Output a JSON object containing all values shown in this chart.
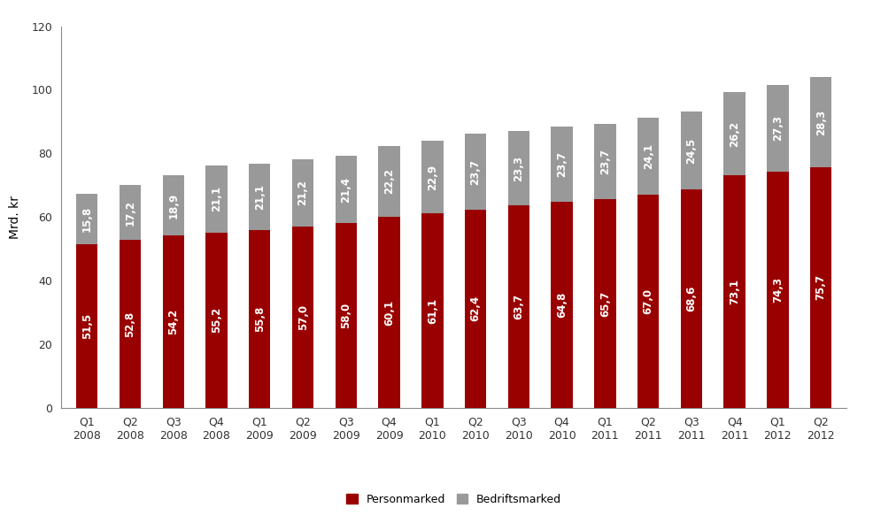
{
  "categories": [
    "Q1\n2008",
    "Q2\n2008",
    "Q3\n2008",
    "Q4\n2008",
    "Q1\n2009",
    "Q2\n2009",
    "Q3\n2009",
    "Q4\n2009",
    "Q1\n2010",
    "Q2\n2010",
    "Q3\n2010",
    "Q4\n2010",
    "Q1\n2011",
    "Q2\n2011",
    "Q3\n2011",
    "Q4\n2011",
    "Q1\n2012",
    "Q2\n2012"
  ],
  "personmarked": [
    51.5,
    52.8,
    54.2,
    55.2,
    55.8,
    57.0,
    58.0,
    60.1,
    61.1,
    62.4,
    63.7,
    64.8,
    65.7,
    67.0,
    68.6,
    73.1,
    74.3,
    75.7
  ],
  "bedriftsmarked": [
    15.8,
    17.2,
    18.9,
    21.1,
    21.1,
    21.2,
    21.4,
    22.2,
    22.9,
    23.7,
    23.3,
    23.7,
    23.7,
    24.1,
    24.5,
    26.2,
    27.3,
    28.3
  ],
  "bar_color_pm": "#990000",
  "bar_color_bm": "#999999",
  "ylabel": "Mrd. kr",
  "ylim": [
    0,
    120
  ],
  "yticks": [
    0,
    20,
    40,
    60,
    80,
    100,
    120
  ],
  "legend_pm": "Personmarked",
  "legend_bm": "Bedriftsmarked",
  "background_color": "#ffffff",
  "label_fontsize": 8.5,
  "axis_fontsize": 9,
  "bar_width": 0.5
}
